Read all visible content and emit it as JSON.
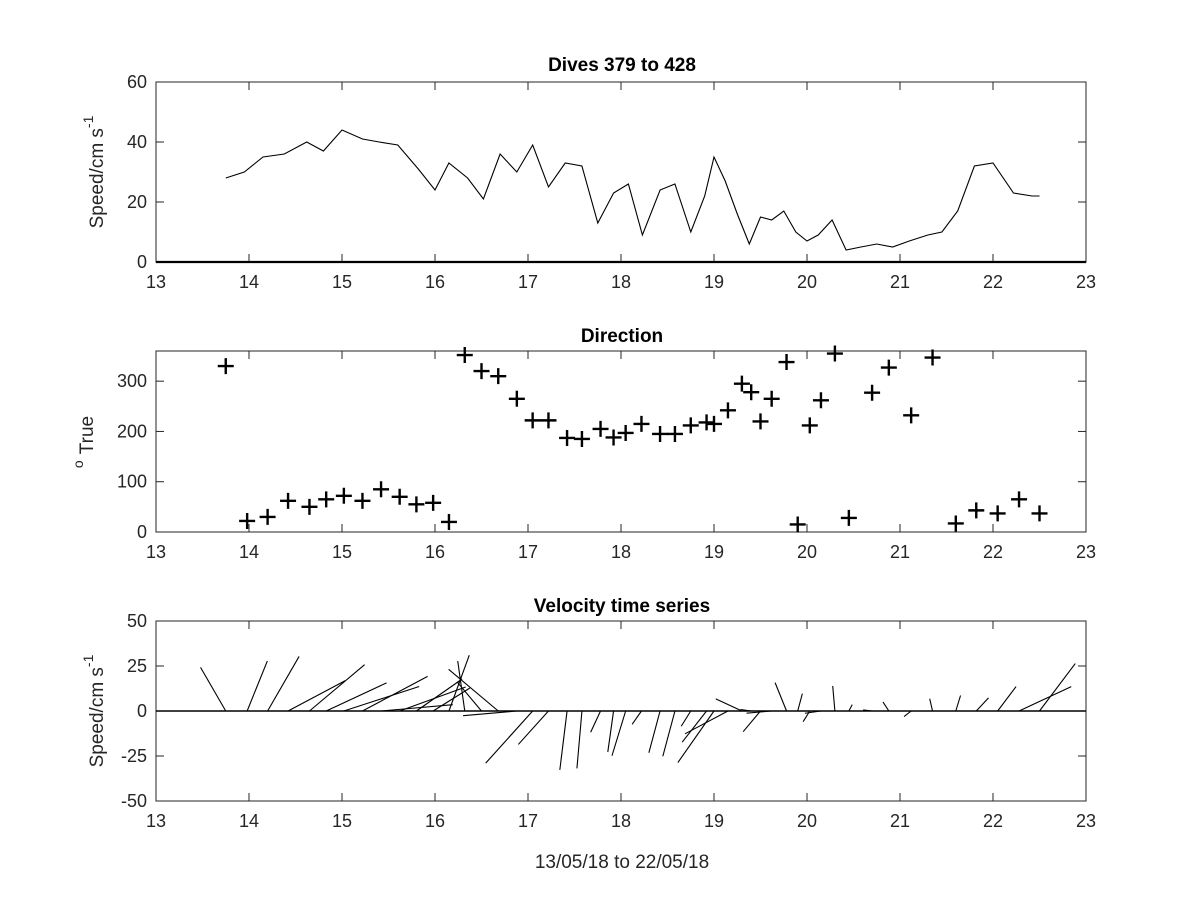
{
  "figure": {
    "xlabel": "13/05/18 to 22/05/18"
  },
  "chart_data": [
    {
      "type": "line",
      "title": "Dives 379 to 428",
      "ylabel": "Speed/cm s",
      "ylabel_superscript": "-1",
      "xlim": [
        13,
        23
      ],
      "ylim": [
        0,
        60
      ],
      "xticks": [
        13,
        14,
        15,
        16,
        17,
        18,
        19,
        20,
        21,
        22,
        23
      ],
      "yticks": [
        0,
        20,
        40,
        60
      ],
      "grid": false,
      "series": [
        {
          "x": [
            13.75,
            13.95,
            14.15,
            14.38,
            14.62,
            14.8,
            15.0,
            15.22,
            15.4,
            15.6,
            15.82,
            16.0,
            16.15,
            16.35,
            16.52,
            16.7,
            16.88,
            17.05,
            17.22,
            17.4,
            17.58,
            17.75,
            17.92,
            18.08,
            18.23,
            18.42,
            18.58,
            18.75,
            18.9,
            19.0,
            19.12,
            19.25,
            19.38,
            19.5,
            19.62,
            19.75,
            19.88,
            20.0,
            20.12,
            20.27,
            20.42,
            20.58,
            20.75,
            20.92,
            21.1,
            21.3,
            21.45,
            21.62,
            21.8,
            22.0,
            22.22,
            22.42,
            22.5
          ],
          "y": [
            28,
            30,
            35,
            36,
            40,
            37,
            44,
            41,
            40,
            39,
            31,
            24,
            33,
            28,
            21,
            36,
            30,
            39,
            25,
            33,
            32,
            13,
            23,
            26,
            9,
            24,
            26,
            10,
            22,
            35,
            27,
            16,
            6,
            15,
            14,
            17,
            10,
            7,
            9,
            14,
            4,
            5,
            6,
            5,
            7,
            9,
            10,
            17,
            32,
            33,
            23,
            22,
            22
          ]
        }
      ]
    },
    {
      "type": "scatter",
      "title": "Direction",
      "ylabel": "True",
      "ylabel_prefix": "o",
      "xlim": [
        13,
        23
      ],
      "ylim": [
        0,
        360
      ],
      "xticks": [
        13,
        14,
        15,
        16,
        17,
        18,
        19,
        20,
        21,
        22,
        23
      ],
      "yticks": [
        0,
        100,
        200,
        300
      ],
      "marker": "+",
      "grid": false,
      "series": [
        {
          "x": [
            13.75,
            13.98,
            14.2,
            14.42,
            14.65,
            14.83,
            15.02,
            15.22,
            15.42,
            15.62,
            15.8,
            15.98,
            16.15,
            16.32,
            16.5,
            16.68,
            16.88,
            17.05,
            17.22,
            17.42,
            17.58,
            17.78,
            17.92,
            18.05,
            18.22,
            18.42,
            18.58,
            18.75,
            18.92,
            19.0,
            19.15,
            19.3,
            19.4,
            19.5,
            19.62,
            19.78,
            19.9,
            20.03,
            20.15,
            20.3,
            20.45,
            20.7,
            20.88,
            21.12,
            21.35,
            21.6,
            21.82,
            22.05,
            22.28,
            22.5
          ],
          "y": [
            330,
            22,
            30,
            62,
            50,
            65,
            72,
            62,
            85,
            70,
            55,
            58,
            20,
            352,
            320,
            310,
            265,
            222,
            222,
            187,
            185,
            205,
            188,
            197,
            215,
            195,
            195,
            212,
            218,
            215,
            242,
            295,
            278,
            220,
            265,
            338,
            15,
            212,
            262,
            355,
            28,
            277,
            327,
            232,
            347,
            17,
            43,
            37,
            65,
            37
          ]
        }
      ]
    },
    {
      "type": "stick",
      "title": "Velocity time series",
      "ylabel": "Speed/cm s",
      "ylabel_superscript": "-1",
      "xlim": [
        13,
        23
      ],
      "ylim": [
        -50,
        50
      ],
      "xticks": [
        13,
        14,
        15,
        16,
        17,
        18,
        19,
        20,
        21,
        22,
        23
      ],
      "yticks": [
        -50,
        -25,
        0,
        25,
        50
      ],
      "baseline": 0,
      "grid": false,
      "series": [
        {
          "x": [
            13.75,
            13.98,
            14.2,
            14.42,
            14.65,
            14.83,
            15.02,
            15.22,
            15.42,
            15.62,
            15.8,
            15.98,
            16.15,
            16.32,
            16.5,
            16.68,
            16.88,
            17.05,
            17.22,
            17.42,
            17.58,
            17.78,
            17.92,
            18.05,
            18.22,
            18.42,
            18.58,
            18.75,
            18.92,
            19.0,
            19.15,
            19.3,
            19.4,
            19.5,
            19.62,
            19.78,
            19.9,
            20.03,
            20.15,
            20.3,
            20.45,
            20.7,
            20.88,
            21.12,
            21.35,
            21.6,
            21.82,
            22.05,
            22.28,
            22.5
          ],
          "speed": [
            28,
            30,
            35,
            36,
            40,
            37,
            44,
            41,
            40,
            39,
            31,
            24,
            33,
            28,
            21,
            36,
            30,
            39,
            25,
            33,
            32,
            13,
            23,
            26,
            9,
            24,
            26,
            10,
            22,
            35,
            27,
            16,
            6,
            15,
            14,
            17,
            10,
            7,
            9,
            14,
            4,
            5,
            6,
            5,
            7,
            9,
            10,
            17,
            32,
            33
          ],
          "direction_deg": [
            330,
            22,
            30,
            62,
            50,
            65,
            72,
            62,
            85,
            70,
            55,
            58,
            20,
            352,
            320,
            310,
            265,
            222,
            222,
            187,
            185,
            205,
            188,
            197,
            215,
            195,
            195,
            212,
            218,
            215,
            242,
            295,
            278,
            220,
            265,
            338,
            15,
            212,
            262,
            355,
            28,
            277,
            327,
            232,
            347,
            17,
            43,
            37,
            65,
            37
          ]
        }
      ]
    }
  ]
}
